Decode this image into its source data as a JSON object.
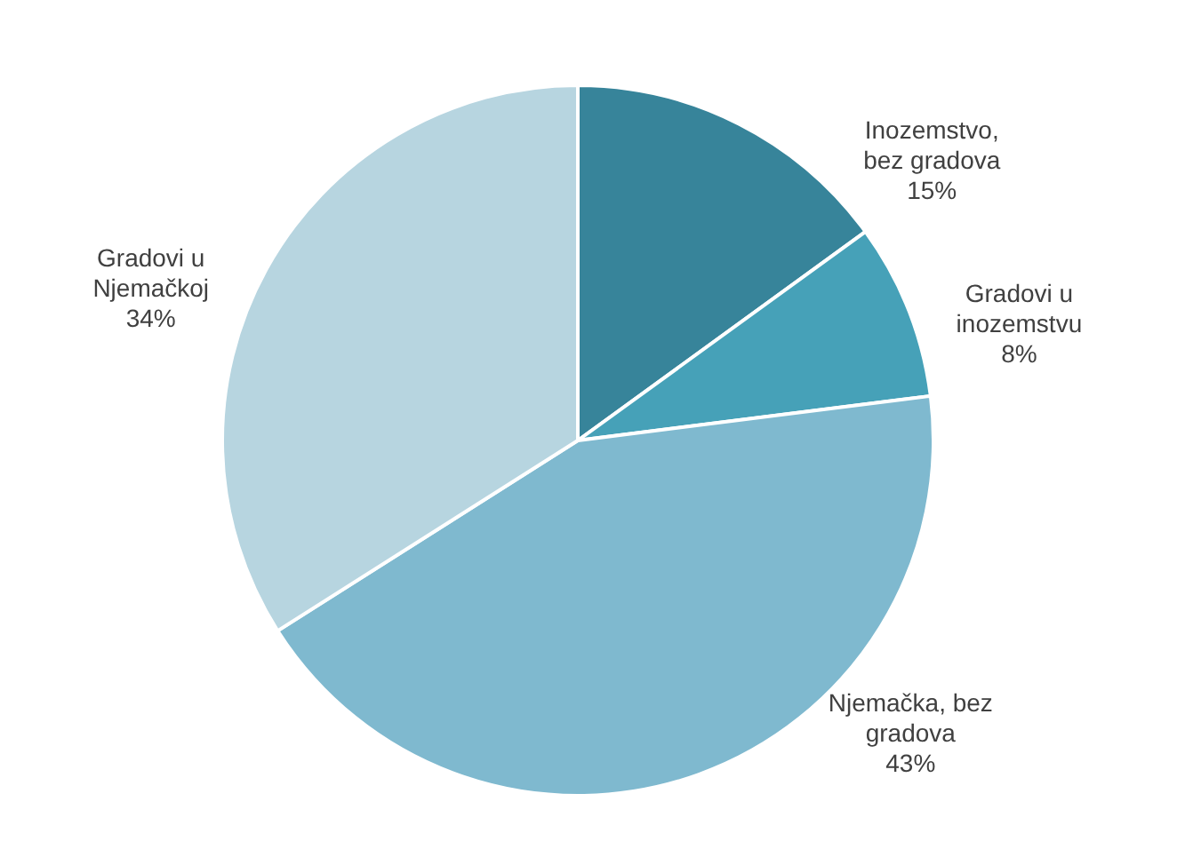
{
  "chart_data": {
    "type": "pie",
    "categories": [
      "Inozemstvo, bez gradova",
      "Gradovi u inozemstvu",
      "Njemačka, bez gradova",
      "Gradovi u Njemačkoj"
    ],
    "values": [
      15,
      8,
      43,
      34
    ],
    "colors": [
      "#37849a",
      "#46a1b8",
      "#7fb9cf",
      "#b7d5e0"
    ],
    "value_labels": [
      "15%",
      "8%",
      "43%",
      "34%"
    ]
  }
}
